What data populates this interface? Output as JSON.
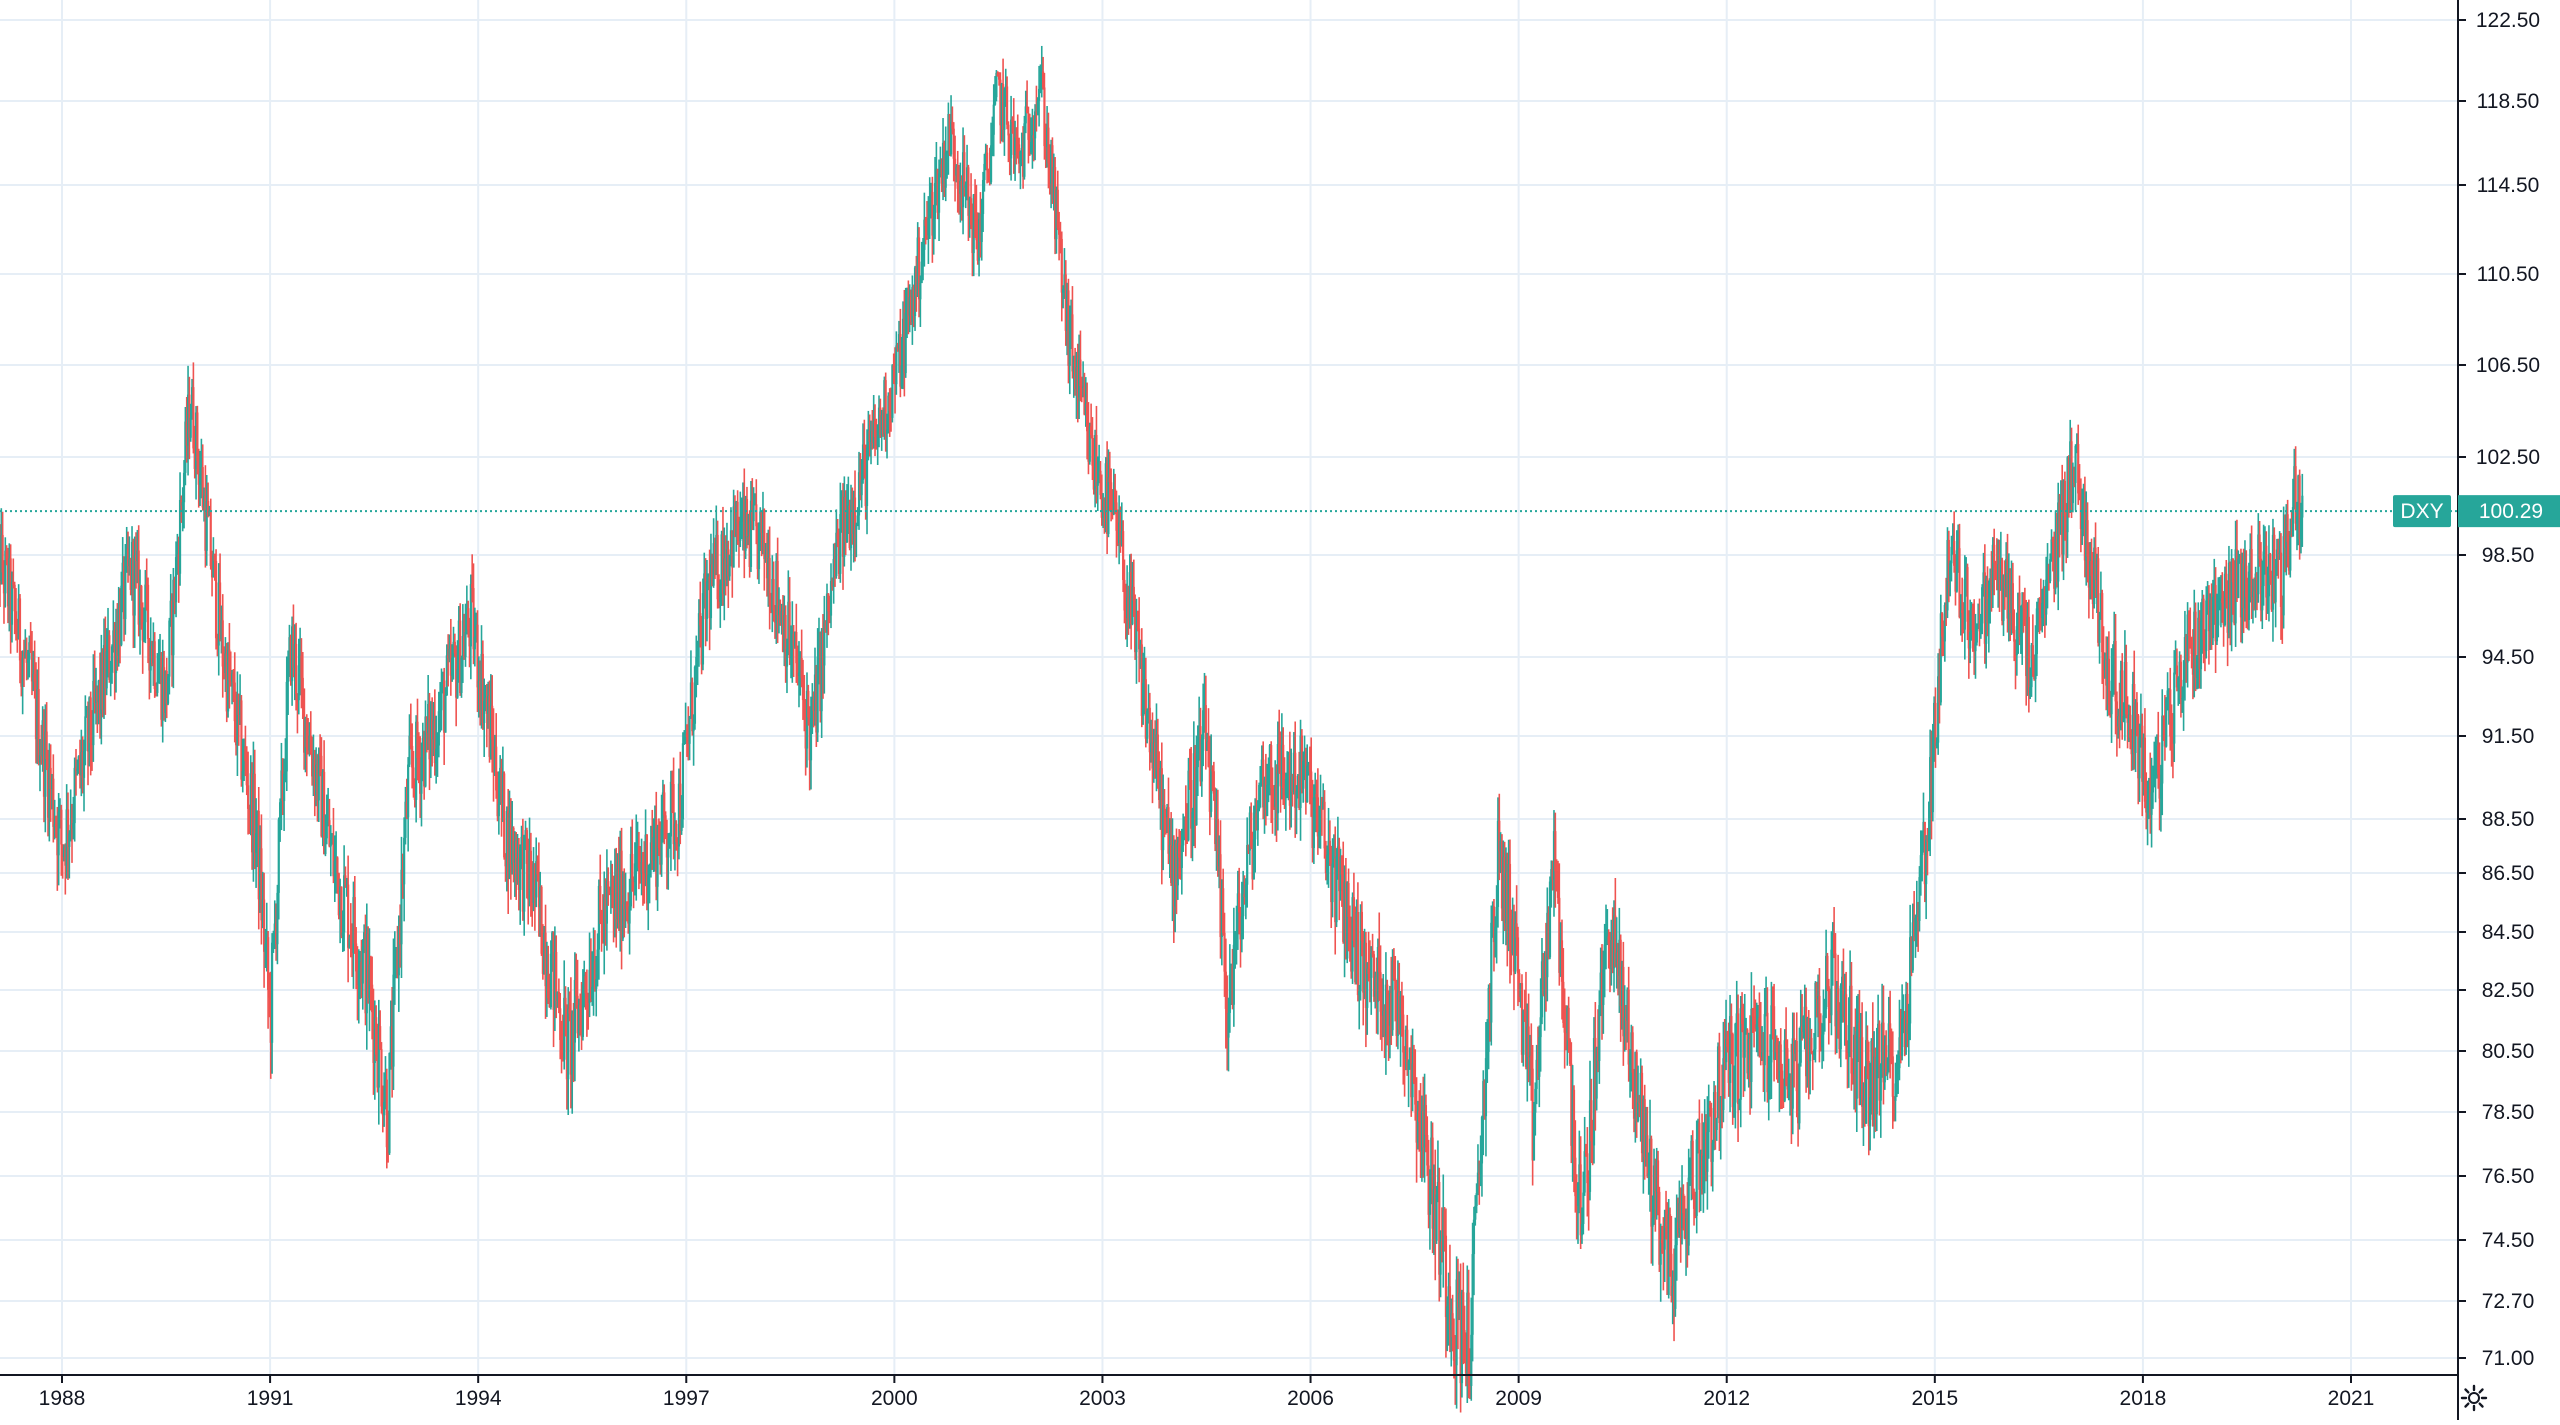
{
  "chart_data": {
    "type": "candlestick",
    "symbol_tag": "DXY",
    "last_price_label": "100.29",
    "last_price": 100.29,
    "y_axis_ticks": [
      "122.50",
      "118.50",
      "114.50",
      "110.50",
      "106.50",
      "102.50",
      "98.50",
      "94.50",
      "91.50",
      "88.50",
      "86.50",
      "84.50",
      "82.50",
      "80.50",
      "78.50",
      "76.50",
      "74.50",
      "72.70",
      "71.00"
    ],
    "x_axis_ticks": [
      "1988",
      "1991",
      "1994",
      "1997",
      "2000",
      "2003",
      "2006",
      "2009",
      "2012",
      "2015",
      "2018",
      "2021"
    ],
    "grid": true,
    "colors": {
      "up": "#26a69a",
      "down": "#ef5350",
      "grid": "#e6eef6",
      "price_line": "#26a69a",
      "axis_text": "#131722"
    },
    "series": [
      {
        "name": "DXY",
        "x": [
          1987.0,
          1987.5,
          1988.0,
          1988.5,
          1989.0,
          1989.5,
          1989.85,
          1990.3,
          1990.8,
          1991.0,
          1991.3,
          1991.6,
          1991.9,
          1992.4,
          1992.7,
          1993.0,
          1993.4,
          1993.9,
          1994.4,
          1994.8,
          1995.3,
          1995.8,
          1996.3,
          1996.9,
          1997.3,
          1997.7,
          1998.1,
          1998.6,
          1998.8,
          1999.2,
          1999.7,
          2000.1,
          2000.5,
          2000.8,
          2001.2,
          2001.5,
          2001.8,
          2002.1,
          2002.5,
          2002.8,
          2003.2,
          2003.6,
          2004.0,
          2004.5,
          2004.8,
          2005.3,
          2005.9,
          2006.4,
          2006.8,
          2007.3,
          2007.8,
          2008.1,
          2008.3,
          2008.7,
          2008.9,
          2009.2,
          2009.5,
          2009.9,
          2010.3,
          2010.5,
          2010.9,
          2011.2,
          2011.4,
          2011.8,
          2012.0,
          2012.5,
          2013.0,
          2013.5,
          2014.0,
          2014.5,
          2014.9,
          2015.2,
          2015.6,
          2015.9,
          2016.4,
          2016.9,
          2017.0,
          2017.5,
          2017.9,
          2018.1,
          2018.6,
          2019.0,
          2019.5,
          2019.8,
          2020.0,
          2020.2,
          2020.3
        ],
        "y": [
          99.5,
          94.0,
          87.5,
          92.5,
          98.0,
          93.0,
          105.0,
          95.0,
          88.0,
          81.5,
          95.0,
          91.0,
          87.0,
          83.0,
          78.5,
          90.0,
          92.0,
          96.0,
          88.0,
          86.0,
          80.5,
          85.0,
          86.5,
          89.0,
          97.0,
          99.5,
          99.0,
          94.0,
          91.5,
          99.0,
          103.0,
          107.0,
          113.0,
          117.0,
          112.0,
          119.0,
          115.5,
          119.5,
          108.0,
          103.0,
          99.5,
          93.0,
          86.5,
          91.5,
          82.0,
          90.0,
          90.0,
          86.0,
          83.0,
          82.0,
          75.5,
          72.0,
          71.5,
          87.0,
          85.0,
          78.0,
          87.0,
          74.5,
          85.0,
          82.0,
          76.5,
          73.5,
          75.5,
          78.5,
          80.0,
          81.0,
          79.5,
          83.0,
          79.5,
          80.5,
          88.5,
          98.5,
          95.5,
          98.0,
          94.0,
          101.0,
          102.5,
          94.0,
          92.0,
          89.0,
          94.5,
          96.5,
          97.5,
          98.0,
          97.5,
          101.0,
          100.29
        ]
      }
    ]
  },
  "ui": {
    "settings_icon": "gear-icon"
  }
}
